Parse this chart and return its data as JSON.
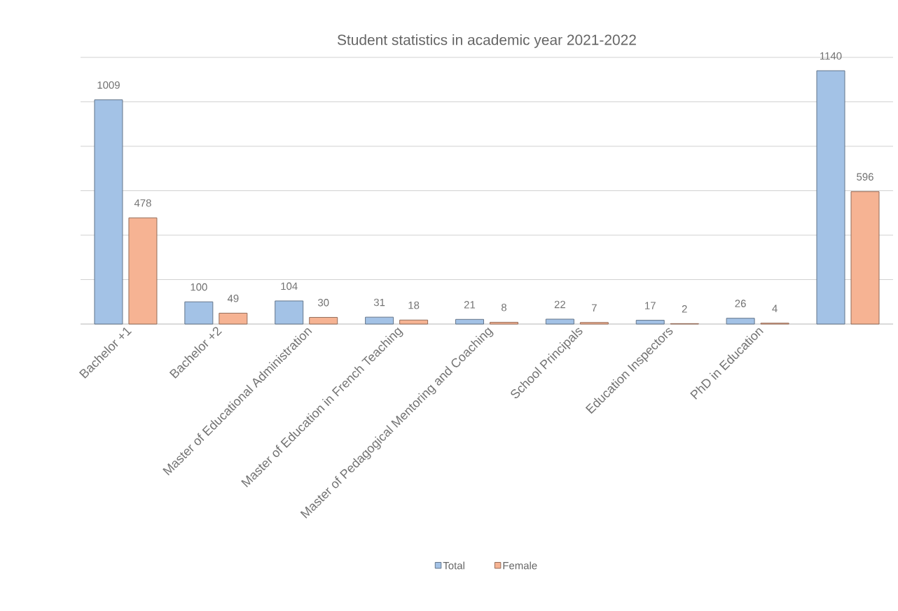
{
  "chart_data": {
    "type": "bar",
    "title": "Student statistics in academic year 2021-2022",
    "categories": [
      "Bachelor +1",
      "Bachelor +2",
      "Master of Educational Administration",
      "Master of Education in French Teaching",
      "Master of Pedagogical Mentoring and Coaching",
      "School Principals",
      "Education Inspectors",
      "PhD in Education",
      null
    ],
    "series": [
      {
        "name": "Total",
        "color": "#a3c2e6",
        "values": [
          1009,
          100,
          104,
          31,
          21,
          22,
          17,
          26,
          1140
        ]
      },
      {
        "name": "Female",
        "color": "#f6b393",
        "values": [
          478,
          49,
          30,
          18,
          8,
          7,
          2,
          4,
          596
        ]
      }
    ],
    "ylim": [
      0,
      1200
    ],
    "yticks": [
      {
        "value": 0,
        "label": null
      },
      {
        "value": 200,
        "label": null
      },
      {
        "value": 400,
        "label": null
      },
      {
        "value": 600,
        "label": null
      },
      {
        "value": 800,
        "label": null
      },
      {
        "value": 1000,
        "label": null
      },
      {
        "value": 1200,
        "label": null
      }
    ],
    "grid": "y",
    "legend": "bottom",
    "data_labels": true
  }
}
